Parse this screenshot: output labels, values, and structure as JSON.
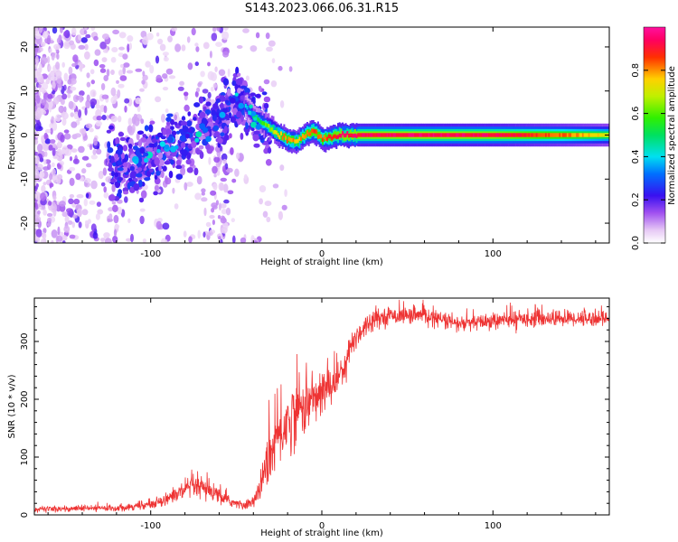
{
  "title": "S143.2023.066.06.31.R15",
  "chart_data": [
    {
      "type": "heatmap",
      "xlabel": "Height of straight line (km)",
      "ylabel": "Frequency (Hz)",
      "xlim": [
        -168,
        168
      ],
      "ylim": [
        -24.5,
        24.5
      ],
      "xticks": [
        -100,
        0,
        100
      ],
      "xtick_labels": [
        "-100",
        "0",
        "100"
      ],
      "yticks": [
        -20,
        -10,
        0,
        10,
        20
      ],
      "ytick_labels": [
        "-20",
        "-10",
        "0",
        "10",
        "20"
      ],
      "colorbar": {
        "label": "Normalized spectral amplitude",
        "range": [
          0,
          1
        ],
        "ticks": [
          0.0,
          0.2,
          0.4,
          0.6,
          0.8
        ],
        "tick_labels": [
          "0.0",
          "0.2",
          "0.4",
          "0.6",
          "0.8"
        ],
        "colormap": "gist_ncar_r-like (white → violet → blue → cyan → green → yellow → red → magenta)"
      },
      "ridge": {
        "description": "dominant frequency vs height",
        "x": [
          -118,
          -100,
          -85,
          -70,
          -58,
          -48,
          -40,
          -32,
          -25,
          -20,
          -15,
          -10,
          -5,
          0,
          10,
          30,
          60,
          100,
          140,
          168
        ],
        "y": [
          -7,
          -5,
          -2,
          1,
          4,
          8,
          4,
          2,
          0,
          -1,
          -1.5,
          0,
          1,
          -1,
          0,
          0,
          0,
          0,
          0,
          0
        ],
        "amplitude": [
          0.15,
          0.2,
          0.25,
          0.3,
          0.35,
          0.3,
          0.45,
          0.6,
          0.75,
          0.8,
          0.75,
          0.8,
          0.85,
          0.8,
          0.9,
          0.9,
          0.92,
          0.9,
          0.8,
          0.7
        ]
      }
    },
    {
      "type": "line",
      "xlabel": "Height of straight line (km)",
      "ylabel": "SNR (10 * v/v)",
      "xlim": [
        -168,
        168
      ],
      "ylim": [
        0,
        375
      ],
      "xticks": [
        -100,
        0,
        100
      ],
      "xtick_labels": [
        "-100",
        "0",
        "100"
      ],
      "yticks": [
        0,
        100,
        200,
        300
      ],
      "ytick_labels": [
        "0",
        "100",
        "200",
        "300"
      ],
      "color": "#ee3333",
      "trend": {
        "x": [
          -168,
          -120,
          -100,
          -85,
          -75,
          -65,
          -55,
          -45,
          -38,
          -32,
          -25,
          -15,
          -5,
          0,
          10,
          20,
          30,
          40,
          60,
          80,
          100,
          120,
          140,
          168
        ],
        "y": [
          10,
          12,
          18,
          35,
          50,
          40,
          25,
          15,
          30,
          90,
          140,
          180,
          200,
          210,
          240,
          310,
          340,
          345,
          345,
          330,
          335,
          340,
          340,
          340
        ],
        "noise": [
          4,
          5,
          6,
          12,
          18,
          16,
          8,
          6,
          12,
          35,
          55,
          45,
          40,
          35,
          30,
          20,
          14,
          12,
          12,
          12,
          12,
          12,
          12,
          12
        ]
      }
    }
  ]
}
